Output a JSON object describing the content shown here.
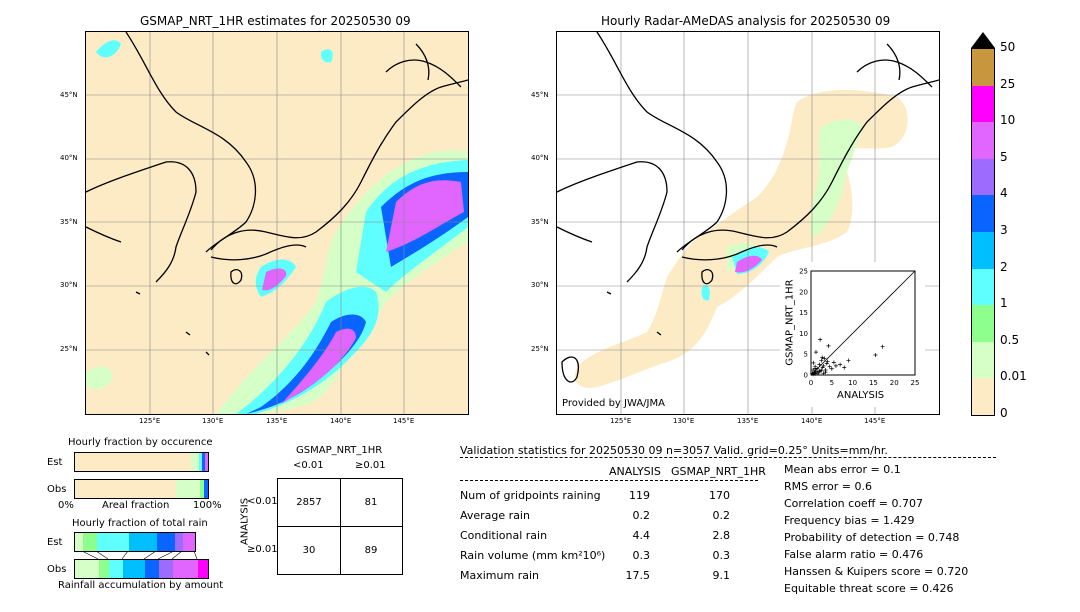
{
  "left_map": {
    "title": "GSMAP_NRT_1HR estimates for 20250530 09",
    "lat_labels": [
      "45°N",
      "40°N",
      "35°N",
      "30°N",
      "25°N"
    ],
    "lon_labels": [
      "125°E",
      "130°E",
      "135°E",
      "140°E",
      "145°E"
    ]
  },
  "right_map": {
    "title": "Hourly Radar-AMeDAS analysis for 20250530 09",
    "lat_labels": [
      "45°N",
      "40°N",
      "35°N",
      "30°N",
      "25°N"
    ],
    "lon_labels": [
      "125°E",
      "130°E",
      "135°E",
      "140°E",
      "145°E"
    ],
    "credit": "Provided by JWA/JMA"
  },
  "colorbar": {
    "labels": [
      "50",
      "25",
      "10",
      "5",
      "4",
      "3",
      "2",
      "1",
      "0.5",
      "0.01",
      "0"
    ],
    "colors": [
      "#c8963c",
      "#ff00ff",
      "#e066ff",
      "#9e6bff",
      "#0a64ff",
      "#00bfff",
      "#5fffff",
      "#8cff8c",
      "#d6ffc8",
      "#fdebc6"
    ]
  },
  "occurrence": {
    "title": "Hourly fraction by occurence",
    "rows": [
      "Est",
      "Obs"
    ],
    "axis_left": "0%",
    "axis_mid": "Areal fraction",
    "axis_right": "100%"
  },
  "total_rain": {
    "title": "Hourly fraction of total rain",
    "rows": [
      "Est",
      "Obs"
    ],
    "footer": "Rainfall accumulation by amount"
  },
  "contingency": {
    "title": "GSMAP_NRT_1HR",
    "col_lt": "<0.01",
    "col_ge": "≥0.01",
    "row_axis": "ANALYSIS",
    "row_lt": "<0.01",
    "row_ge": "≥0.01",
    "cells": [
      "2857",
      "81",
      "30",
      "89"
    ]
  },
  "validation": {
    "header": "Validation statistics for 20250530 09  n=3057 Valid. grid=0.25° Units=mm/hr.",
    "col_analysis": "ANALYSIS",
    "col_gsmap": "GSMAP_NRT_1HR",
    "rows": [
      {
        "label": "Num of gridpoints raining",
        "a": "119",
        "g": "170"
      },
      {
        "label": "Average rain",
        "a": "0.2",
        "g": "0.2"
      },
      {
        "label": "Conditional rain",
        "a": "4.4",
        "g": "2.8"
      },
      {
        "label": "Rain volume (mm km²10⁶)",
        "a": "0.3",
        "g": "0.3"
      },
      {
        "label": "Maximum rain",
        "a": "17.5",
        "g": "9.1"
      }
    ],
    "scores": [
      "Mean abs error =    0.1",
      "RMS error =    0.6",
      "Correlation coeff =  0.707",
      "Frequency bias =  1.429",
      "Probability of detection =  0.748",
      "False alarm ratio =  0.476",
      "Hanssen & Kuipers score =  0.720",
      "Equitable threat score =  0.426"
    ]
  },
  "chart_data": {
    "type": "scatter",
    "xlabel": "ANALYSIS",
    "ylabel": "GSMAP_NRT_1HR",
    "xlim": [
      0,
      25
    ],
    "ylim": [
      0,
      25
    ],
    "ticks": [
      "0",
      "5",
      "10",
      "15",
      "20",
      "25"
    ],
    "x": [
      0.3,
      0.5,
      0.8,
      1.0,
      1.2,
      1.5,
      1.8,
      2.0,
      2.2,
      2.5,
      2.8,
      3.0,
      3.2,
      3.5,
      3.8,
      4.0,
      4.5,
      5.0,
      5.5,
      6.0,
      7.0,
      8.0,
      9.0,
      0.5,
      1.0,
      1.5,
      2.0,
      2.5,
      3.0,
      3.5,
      1.2,
      2.2,
      2.7,
      4.2,
      15.5,
      17.2,
      1.0,
      0.6
    ],
    "y": [
      0.4,
      1.2,
      0.6,
      2.0,
      0.8,
      1.5,
      0.5,
      2.5,
      1.0,
      3.5,
      1.8,
      2.2,
      4.0,
      1.2,
      2.8,
      3.2,
      2.0,
      1.5,
      3.0,
      2.2,
      2.5,
      1.8,
      3.5,
      0.2,
      0.3,
      0.5,
      0.9,
      1.1,
      0.4,
      0.7,
      5.5,
      8.5,
      4.2,
      7.0,
      4.8,
      6.8,
      1.6,
      2.9
    ]
  }
}
